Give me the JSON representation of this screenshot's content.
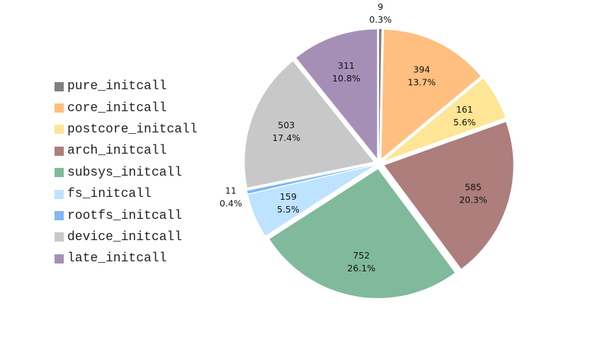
{
  "chart_data": {
    "type": "pie",
    "title": "",
    "legend_position": "left",
    "slices": [
      {
        "name": "pure_initcall",
        "value": 9,
        "percent_label": "0.3%",
        "color": "#7f7f7f"
      },
      {
        "name": "core_initcall",
        "value": 394,
        "percent_label": "13.7%",
        "color": "#ffbf7f"
      },
      {
        "name": "postcore_initcall",
        "value": 161,
        "percent_label": "5.6%",
        "color": "#ffe596"
      },
      {
        "name": "arch_initcall",
        "value": 585,
        "percent_label": "20.3%",
        "color": "#ad7e7b"
      },
      {
        "name": "subsys_initcall",
        "value": 752,
        "percent_label": "26.1%",
        "color": "#80b99c"
      },
      {
        "name": "fs_initcall",
        "value": 159,
        "percent_label": "5.5%",
        "color": "#bee3fe"
      },
      {
        "name": "rootfs_initcall",
        "value": 11,
        "percent_label": "0.4%",
        "color": "#7fb8f2"
      },
      {
        "name": "device_initcall",
        "value": 503,
        "percent_label": "17.4%",
        "color": "#c8c8c8"
      },
      {
        "name": "late_initcall",
        "value": 311,
        "percent_label": "10.8%",
        "color": "#a68fb7"
      }
    ]
  }
}
